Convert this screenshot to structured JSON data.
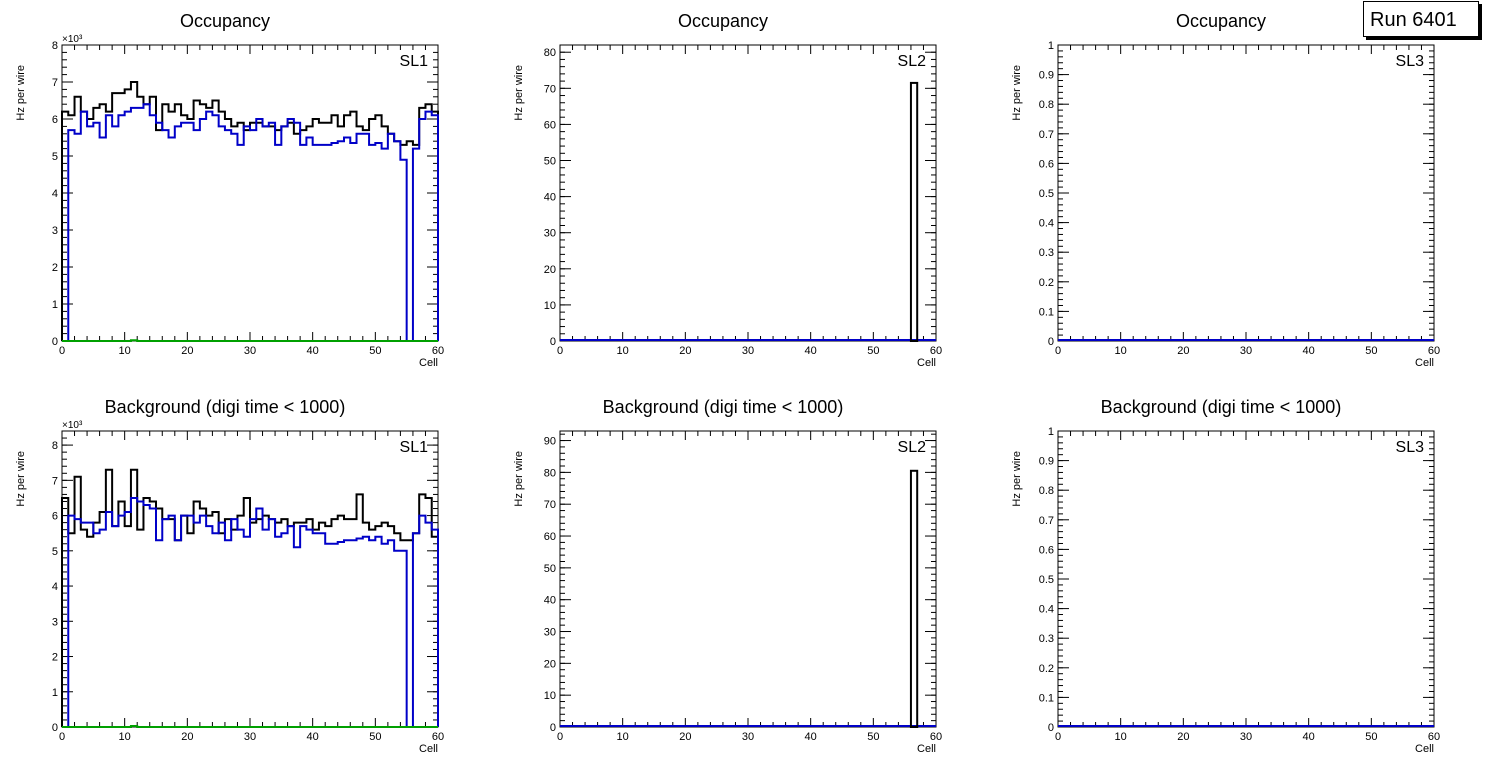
{
  "run_label": "Run 6401",
  "colors": {
    "total": "#000000",
    "blue": "#0000c8",
    "green": "#00a000"
  },
  "chart_data": [
    {
      "type": "line",
      "title": "Occupancy",
      "tag": "SL1",
      "xlabel": "Cell",
      "ylabel": "Hz per wire",
      "xlim": [
        0,
        60
      ],
      "ylim": [
        0,
        8000
      ],
      "yexp": "×10³",
      "xticks": [
        "0",
        "10",
        "20",
        "30",
        "40",
        "50",
        "60"
      ],
      "yticks": [
        "0",
        "1",
        "2",
        "3",
        "4",
        "5",
        "6",
        "7",
        "8"
      ],
      "series": [
        {
          "name": "total",
          "color": "#000000",
          "values": [
            6200,
            6100,
            6600,
            6200,
            6000,
            6300,
            6400,
            6200,
            6700,
            6700,
            6800,
            7000,
            6600,
            6400,
            6600,
            5700,
            6400,
            6200,
            6400,
            6100,
            6000,
            6500,
            6400,
            6300,
            6500,
            6200,
            6000,
            5800,
            5900,
            5700,
            5900,
            5900,
            5800,
            5800,
            5700,
            5800,
            5900,
            5600,
            5700,
            5800,
            6000,
            5900,
            5900,
            6100,
            5800,
            6100,
            6200,
            5800,
            5700,
            6000,
            6100,
            5800,
            5600,
            5400,
            5300,
            5400,
            5300,
            6300,
            6400,
            6200
          ]
        },
        {
          "name": "blue",
          "color": "#0000c8",
          "values": [
            0,
            5700,
            5600,
            6200,
            5800,
            5900,
            5500,
            6100,
            5800,
            6100,
            6200,
            6300,
            6300,
            6400,
            6100,
            5900,
            5700,
            5500,
            5800,
            5900,
            5900,
            5700,
            6000,
            6200,
            6100,
            5800,
            5700,
            5600,
            5300,
            5800,
            5700,
            6000,
            5800,
            5900,
            5300,
            5800,
            6000,
            5900,
            5300,
            5500,
            5300,
            5300,
            5300,
            5350,
            5400,
            5500,
            5350,
            5600,
            5600,
            5300,
            5350,
            5200,
            5600,
            5400,
            4900,
            0,
            5200,
            6000,
            6200,
            6100
          ]
        },
        {
          "name": "green",
          "color": "#00a000",
          "values": [
            0,
            0,
            0,
            0,
            0,
            0,
            0,
            0,
            0,
            0,
            0,
            20,
            0,
            0,
            0,
            0,
            0,
            0,
            0,
            0,
            0,
            0,
            0,
            0,
            0,
            0,
            0,
            0,
            0,
            0,
            0,
            0,
            0,
            0,
            0,
            0,
            0,
            0,
            0,
            0,
            0,
            0,
            0,
            0,
            0,
            0,
            0,
            0,
            0,
            0,
            0,
            0,
            0,
            0,
            0,
            0,
            0,
            0,
            0,
            0
          ]
        }
      ]
    },
    {
      "type": "bar",
      "title": "Occupancy",
      "tag": "SL2",
      "xlabel": "Cell",
      "ylabel": "Hz per wire",
      "xlim": [
        0,
        60
      ],
      "ylim": [
        0,
        82
      ],
      "xticks": [
        "0",
        "10",
        "20",
        "30",
        "40",
        "50",
        "60"
      ],
      "yticks": [
        "0",
        "10",
        "20",
        "30",
        "40",
        "50",
        "60",
        "70",
        "80"
      ],
      "bars": [
        {
          "cell": 56,
          "value": 71.5
        }
      ],
      "baseline_color": "#0000c8"
    },
    {
      "type": "line",
      "title": "Occupancy",
      "tag": "SL3",
      "xlabel": "Cell",
      "ylabel": "Hz per wire",
      "xlim": [
        0,
        60
      ],
      "ylim": [
        0,
        1
      ],
      "xticks": [
        "0",
        "10",
        "20",
        "30",
        "40",
        "50",
        "60"
      ],
      "yticks": [
        "0",
        "0.1",
        "0.2",
        "0.3",
        "0.4",
        "0.5",
        "0.6",
        "0.7",
        "0.8",
        "0.9",
        "1"
      ],
      "bars": [],
      "baseline_color": "#0000c8"
    },
    {
      "type": "line",
      "title": "Background (digi time < 1000)",
      "tag": "SL1",
      "xlabel": "Cell",
      "ylabel": "Hz per wire",
      "xlim": [
        0,
        60
      ],
      "ylim": [
        0,
        8400
      ],
      "yexp": "×10³",
      "xticks": [
        "0",
        "10",
        "20",
        "30",
        "40",
        "50",
        "60"
      ],
      "yticks": [
        "0",
        "1",
        "2",
        "3",
        "4",
        "5",
        "6",
        "7",
        "8"
      ],
      "series": [
        {
          "name": "total",
          "color": "#000000",
          "values": [
            6500,
            5500,
            7100,
            5600,
            5400,
            5800,
            6100,
            7300,
            5700,
            6400,
            5700,
            7300,
            5600,
            6500,
            6400,
            6200,
            5900,
            5900,
            5300,
            6000,
            5500,
            6400,
            6200,
            6000,
            6100,
            5500,
            5900,
            5600,
            6000,
            6500,
            5800,
            5900,
            6000,
            5900,
            5800,
            5900,
            5700,
            5800,
            5800,
            5900,
            5600,
            5800,
            5700,
            5900,
            6000,
            5900,
            5900,
            6600,
            5800,
            5600,
            5700,
            5800,
            5700,
            5500,
            5300,
            5300,
            5500,
            6600,
            6500,
            5400
          ]
        },
        {
          "name": "blue",
          "color": "#0000c8",
          "values": [
            0,
            6000,
            5900,
            5800,
            5800,
            5500,
            5600,
            6100,
            5700,
            6000,
            6100,
            6500,
            6400,
            6300,
            6200,
            5300,
            5900,
            6000,
            5300,
            6000,
            6000,
            5800,
            6000,
            5700,
            5500,
            5800,
            5300,
            5900,
            5600,
            5400,
            5900,
            6200,
            5600,
            5900,
            5400,
            5500,
            5700,
            5100,
            5700,
            5600,
            5500,
            5500,
            5200,
            5200,
            5250,
            5300,
            5300,
            5350,
            5400,
            5300,
            5400,
            5200,
            5300,
            5000,
            5000,
            0,
            5500,
            6000,
            5800,
            5600
          ]
        },
        {
          "name": "green",
          "color": "#00a000",
          "values": [
            0,
            0,
            0,
            0,
            0,
            0,
            0,
            0,
            0,
            0,
            0,
            30,
            0,
            0,
            0,
            0,
            0,
            0,
            0,
            0,
            0,
            0,
            0,
            0,
            0,
            0,
            0,
            0,
            0,
            0,
            0,
            0,
            0,
            0,
            0,
            0,
            0,
            0,
            0,
            0,
            0,
            0,
            0,
            0,
            0,
            0,
            0,
            0,
            0,
            0,
            0,
            0,
            0,
            0,
            0,
            0,
            0,
            0,
            0,
            0
          ]
        }
      ]
    },
    {
      "type": "bar",
      "title": "Background (digi time < 1000)",
      "tag": "SL2",
      "xlabel": "Cell",
      "ylabel": "Hz per wire",
      "xlim": [
        0,
        60
      ],
      "ylim": [
        0,
        93
      ],
      "xticks": [
        "0",
        "10",
        "20",
        "30",
        "40",
        "50",
        "60"
      ],
      "yticks": [
        "0",
        "10",
        "20",
        "30",
        "40",
        "50",
        "60",
        "70",
        "80",
        "90"
      ],
      "bars": [
        {
          "cell": 56,
          "value": 80.5
        }
      ],
      "baseline_color": "#0000c8"
    },
    {
      "type": "line",
      "title": "Background (digi time < 1000)",
      "tag": "SL3",
      "xlabel": "Cell",
      "ylabel": "Hz per wire",
      "xlim": [
        0,
        60
      ],
      "ylim": [
        0,
        1
      ],
      "xticks": [
        "0",
        "10",
        "20",
        "30",
        "40",
        "50",
        "60"
      ],
      "yticks": [
        "0",
        "0.1",
        "0.2",
        "0.3",
        "0.4",
        "0.5",
        "0.6",
        "0.7",
        "0.8",
        "0.9",
        "1"
      ],
      "bars": [],
      "baseline_color": "#0000c8"
    }
  ]
}
